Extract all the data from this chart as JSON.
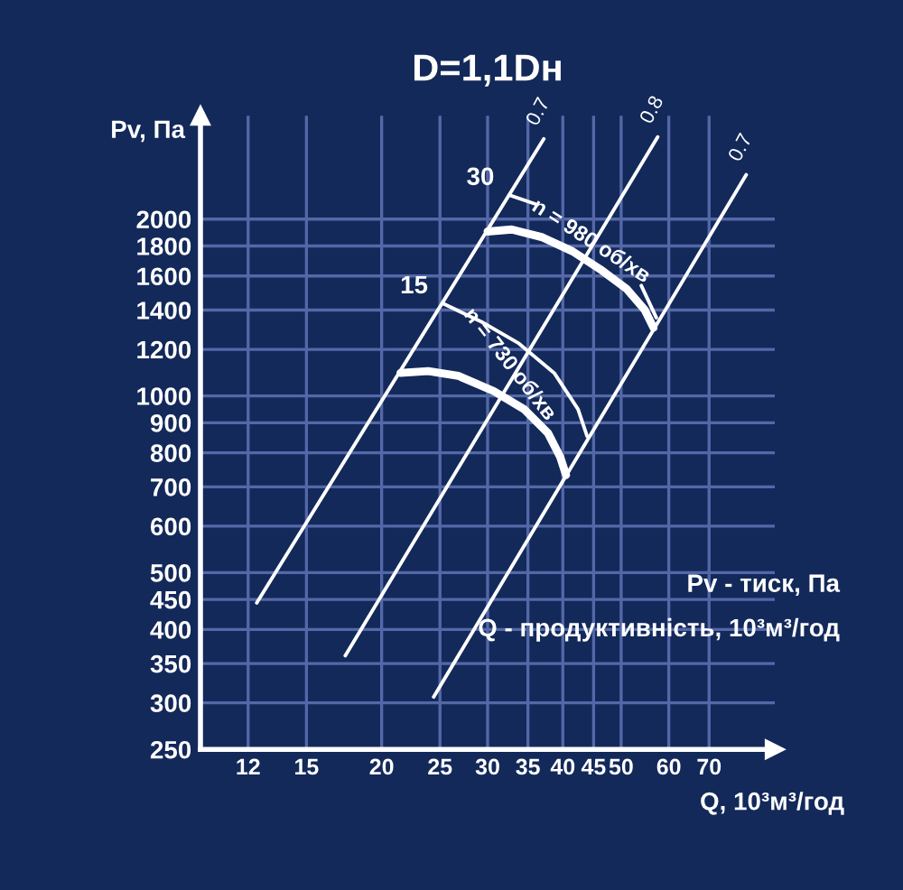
{
  "chart_data": {
    "type": "line",
    "title": "D=1,1Dн",
    "xlabel": "Q, 10³м³/год",
    "ylabel": "Pv, Па",
    "log": "xy",
    "grid": true,
    "legend": false,
    "marker": "none",
    "line_style": "solid",
    "xlim": [
      10,
      90
    ],
    "ylim": [
      250,
      3000
    ],
    "xticks": [
      12,
      15,
      20,
      25,
      30,
      35,
      40,
      45,
      50,
      60,
      70
    ],
    "yticks": [
      250,
      300,
      350,
      400,
      450,
      500,
      600,
      700,
      800,
      900,
      1000,
      1200,
      1400,
      1600,
      1800,
      2000
    ],
    "series": [
      {
        "name": "0.7",
        "color": "#ffffff",
        "x": [
          12.4,
          37.2
        ],
        "values": [
          444,
          2740
        ]
      },
      {
        "name": "0.8",
        "color": "#ffffff",
        "x": [
          17.4,
          57.5
        ],
        "values": [
          361,
          2760
        ]
      },
      {
        "name": "0.7",
        "color": "#ffffff",
        "x": [
          24.4,
          80.7
        ],
        "values": [
          307,
          2380
        ]
      },
      {
        "name": "30",
        "color": "#ffffff",
        "x": [
          32.6,
          36.1,
          45,
          54.0,
          57.2
        ],
        "values": [
          2197,
          2120,
          null,
          1541,
          1359
        ]
      },
      {
        "name": "15",
        "color": "#ffffff",
        "x": [
          25.3,
          29.3,
          33.7,
          38.7,
          42.4,
          43.9
        ],
        "values": [
          1436,
          1337,
          1231,
          1094,
          949,
          853
        ]
      },
      {
        "color": "#ffffff",
        "x": [
          30.0,
          32.9,
          37.0,
          41.5,
          46.5,
          51.0,
          54.7,
          56.6
        ],
        "values": [
          1905,
          1920,
          1862,
          1763,
          1634,
          1523,
          1402,
          1306
        ]
      },
      {
        "color": "#ffffff",
        "x": [
          21.5,
          23.9,
          26.8,
          30.7,
          34.5,
          37.8,
          39.6,
          40.5
        ],
        "values": [
          1094,
          1102,
          1082,
          1019,
          949,
          864,
          787,
          733
        ]
      }
    ],
    "annotations": [
      {
        "text": "n = 980 об/хв",
        "x": 44.5,
        "y": 1830
      },
      {
        "text": "n = 730 об/хв",
        "x": 32.6,
        "y": 1130
      },
      "Pv - тиск, Па",
      "Q - продуктивність, 10³м³/год"
    ]
  }
}
